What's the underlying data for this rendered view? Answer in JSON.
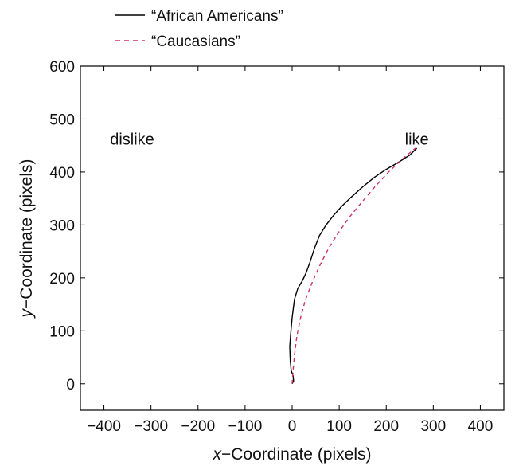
{
  "chart_data": {
    "type": "line",
    "title": "",
    "xlabel_prefix": "x",
    "xlabel_suffix": "−Coordinate (pixels)",
    "ylabel_prefix": "y",
    "ylabel_suffix": "−Coordinate (pixels)",
    "xlim": [
      -450,
      450
    ],
    "ylim": [
      -50,
      600
    ],
    "xticks": [
      -400,
      -300,
      -200,
      -100,
      0,
      100,
      200,
      300,
      400
    ],
    "yticks": [
      0,
      100,
      200,
      300,
      400,
      500,
      600
    ],
    "xtick_labels": [
      "−400",
      "−300",
      "−200",
      "−100",
      "0",
      "100",
      "200",
      "300",
      "400"
    ],
    "ytick_labels": [
      "0",
      "100",
      "200",
      "300",
      "400",
      "500",
      "600"
    ],
    "grid": false,
    "legend_position": "top-outside",
    "annotations": [
      {
        "text": "dislike",
        "x": -340,
        "y": 462
      },
      {
        "text": "like",
        "x": 265,
        "y": 462
      }
    ],
    "series": [
      {
        "name": "“African Americans”",
        "color": "#000000",
        "dash": "solid",
        "x": [
          0,
          3,
          2,
          -2,
          -4,
          -5,
          -3,
          0,
          5,
          12,
          22,
          30,
          38,
          47,
          58,
          72,
          88,
          105,
          125,
          150,
          175,
          200,
          225,
          250,
          265
        ],
        "y": [
          0,
          5,
          15,
          25,
          45,
          70,
          95,
          125,
          160,
          180,
          195,
          210,
          230,
          255,
          280,
          300,
          318,
          335,
          352,
          372,
          390,
          405,
          418,
          432,
          445
        ]
      },
      {
        "name": "“Caucasians”",
        "color": "#cc3366",
        "dash": "dashed",
        "x": [
          0,
          2,
          5,
          10,
          18,
          28,
          42,
          58,
          77,
          98,
          122,
          148,
          176,
          205,
          235,
          262
        ],
        "y": [
          0,
          25,
          55,
          90,
          125,
          158,
          190,
          222,
          255,
          285,
          315,
          343,
          372,
          400,
          425,
          445
        ]
      }
    ]
  }
}
